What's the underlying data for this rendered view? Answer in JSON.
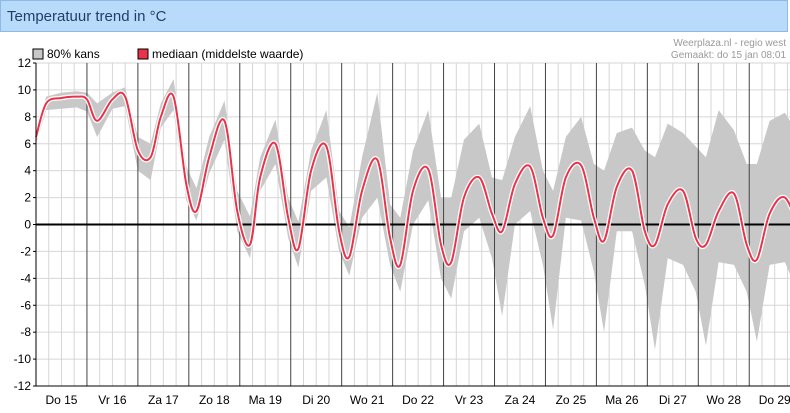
{
  "header": {
    "title": "Temperatuur trend in °C"
  },
  "credit": {
    "line1": "Weerplaza.nl - regio west",
    "line2": "Gemaakt: do 15 jan 08:01"
  },
  "colors": {
    "band": "#c8c8c8",
    "median": "#e8334a",
    "grid_major": "#444444",
    "grid_minor": "#d6d6d6",
    "zero": "#000000"
  },
  "chart_data": {
    "type": "area",
    "title": "Temperatuur trend in °C",
    "ylim": [
      -12,
      12
    ],
    "yticks": [
      12,
      10,
      8,
      6,
      4,
      2,
      0,
      -2,
      -4,
      -6,
      -8,
      -10,
      -12
    ],
    "xlim": [
      0,
      15
    ],
    "day_labels": [
      "Do 15",
      "Vr 16",
      "Za 17",
      "Zo 18",
      "Ma 19",
      "Di 20",
      "Wo 21",
      "Do 22",
      "Vr 23",
      "Za 24",
      "Zo 25",
      "Ma 26",
      "Di 27",
      "Wo 28",
      "Do 29"
    ],
    "legend": {
      "position": "top-left",
      "band_label": "80% kans",
      "median_label": "mediaan (middelste waarde)"
    },
    "grid": true,
    "series": [
      {
        "name": "mediaan (middelste waarde)",
        "x": [
          0,
          0.2,
          0.5,
          0.8,
          1.0,
          1.2,
          1.5,
          1.75,
          2.0,
          2.25,
          2.45,
          2.7,
          2.95,
          3.15,
          3.4,
          3.7,
          3.95,
          4.2,
          4.4,
          4.7,
          4.95,
          5.15,
          5.4,
          5.7,
          5.95,
          6.15,
          6.4,
          6.7,
          6.95,
          7.15,
          7.4,
          7.7,
          7.95,
          8.15,
          8.4,
          8.7,
          8.95,
          9.15,
          9.4,
          9.7,
          9.95,
          10.15,
          10.4,
          10.7,
          10.95,
          11.15,
          11.4,
          11.7,
          11.95,
          12.15,
          12.4,
          12.7,
          12.95,
          13.15,
          13.4,
          13.7,
          13.95,
          14.15,
          14.4,
          14.7,
          15.0
        ],
        "values": [
          6.5,
          9.0,
          9.4,
          9.5,
          9.3,
          7.7,
          9.3,
          9.5,
          5.5,
          5.0,
          8.0,
          9.5,
          3.0,
          1.0,
          5.0,
          7.7,
          1.0,
          -1.5,
          3.5,
          6.0,
          0.5,
          -1.8,
          4.0,
          5.8,
          -0.5,
          -2.4,
          2.5,
          4.8,
          -1.0,
          -3.0,
          2.5,
          4.1,
          -1.5,
          -2.8,
          2.0,
          3.5,
          0.8,
          -0.5,
          3.0,
          4.3,
          0.5,
          -0.8,
          3.5,
          4.4,
          0.5,
          -1.2,
          2.8,
          4.0,
          -0.5,
          -1.5,
          1.5,
          2.5,
          -1.0,
          -1.5,
          1.0,
          2.3,
          -1.5,
          -2.6,
          0.8,
          2.0,
          -0.5
        ]
      },
      {
        "name": "80% kans",
        "x": [
          0,
          0.2,
          0.5,
          0.8,
          1.0,
          1.2,
          1.5,
          1.75,
          2.0,
          2.25,
          2.45,
          2.7,
          2.95,
          3.15,
          3.4,
          3.7,
          3.95,
          4.2,
          4.4,
          4.7,
          4.95,
          5.15,
          5.4,
          5.7,
          5.95,
          6.15,
          6.4,
          6.7,
          6.95,
          7.15,
          7.4,
          7.7,
          7.95,
          8.15,
          8.4,
          8.7,
          8.95,
          9.15,
          9.4,
          9.7,
          9.95,
          10.15,
          10.4,
          10.7,
          10.95,
          11.15,
          11.4,
          11.7,
          11.95,
          12.15,
          12.4,
          12.7,
          12.95,
          13.15,
          13.4,
          13.7,
          13.95,
          14.15,
          14.4,
          14.7,
          15.0
        ],
        "lower": [
          6.0,
          8.5,
          8.6,
          8.7,
          8.4,
          6.5,
          8.6,
          8.8,
          4.0,
          3.3,
          7.2,
          8.5,
          1.8,
          0.3,
          3.8,
          6.3,
          -0.5,
          -2.5,
          2.5,
          4.5,
          -1.0,
          -3.2,
          2.5,
          3.5,
          -2.0,
          -3.8,
          0.5,
          2.0,
          -3.0,
          -5.0,
          0.0,
          1.8,
          -4.0,
          -5.5,
          -0.5,
          0.5,
          -2.5,
          -6.8,
          0.0,
          1.0,
          -3.0,
          -7.8,
          0.5,
          0.3,
          -3.5,
          -8.0,
          -0.5,
          -0.5,
          -4.5,
          -9.3,
          -2.5,
          -3.0,
          -5.0,
          -9.0,
          -2.8,
          -3.0,
          -5.0,
          -8.7,
          -3.0,
          -2.8,
          -5.5
        ],
        "upper": [
          7.0,
          9.5,
          9.8,
          9.9,
          9.8,
          9.0,
          9.8,
          10.2,
          6.5,
          6.0,
          9.0,
          10.8,
          4.3,
          2.7,
          6.5,
          9.2,
          2.5,
          0.6,
          5.0,
          7.8,
          2.0,
          0.2,
          5.5,
          8.5,
          1.0,
          -0.2,
          5.0,
          9.8,
          1.5,
          0.5,
          5.5,
          8.5,
          2.0,
          2.0,
          6.3,
          7.5,
          3.5,
          3.3,
          6.5,
          8.8,
          4.0,
          2.5,
          6.5,
          8.0,
          4.5,
          4.0,
          6.8,
          7.2,
          5.5,
          5.0,
          7.5,
          6.8,
          5.8,
          5.0,
          8.5,
          7.0,
          4.5,
          4.5,
          7.7,
          8.3,
          6.5
        ]
      }
    ]
  }
}
